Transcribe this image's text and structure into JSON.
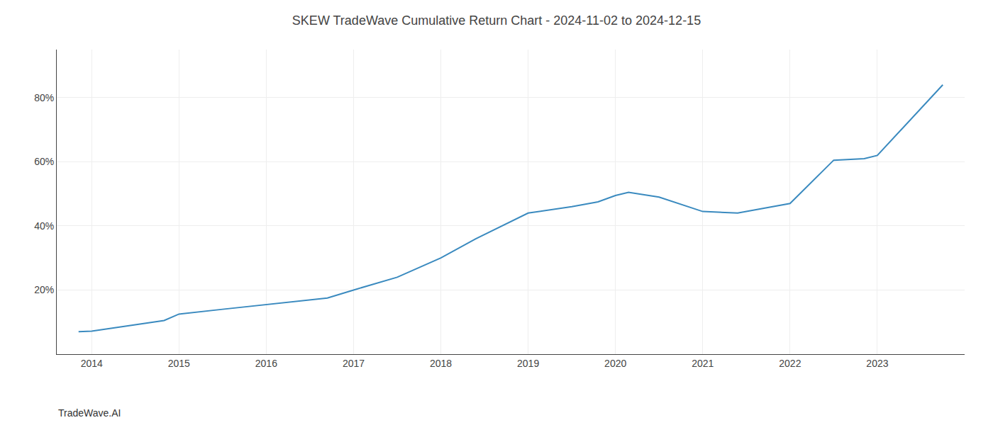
{
  "chart_data": {
    "type": "line",
    "title": "SKEW TradeWave Cumulative Return Chart - 2024-11-02 to 2024-12-15",
    "annotations": [
      {
        "text": "TradeWave.AI"
      }
    ],
    "x": [
      2013.85,
      2014.0,
      2014.83,
      2015.0,
      2015.5,
      2016.0,
      2016.7,
      2017.0,
      2017.5,
      2018.0,
      2018.4,
      2019.0,
      2019.5,
      2019.8,
      2020.0,
      2020.15,
      2020.5,
      2021.0,
      2021.4,
      2022.0,
      2022.5,
      2022.85,
      2023.0,
      2023.75
    ],
    "values": [
      7.0,
      7.2,
      10.5,
      12.5,
      14.0,
      15.5,
      17.5,
      20.0,
      24.0,
      30.0,
      36.0,
      44.0,
      46.0,
      47.5,
      49.5,
      50.5,
      49.0,
      44.5,
      44.0,
      47.0,
      60.5,
      61.0,
      62.0,
      84.0
    ],
    "color": "#3a8abf",
    "xlim": [
      2013.6,
      2024.0
    ],
    "xticks": [
      2014,
      2015,
      2016,
      2017,
      2018,
      2019,
      2020,
      2021,
      2022,
      2023
    ],
    "ylim": [
      0,
      95
    ],
    "yticks": [
      {
        "value": 20,
        "label": "20%"
      },
      {
        "value": 40,
        "label": "40%"
      },
      {
        "value": 60,
        "label": "60%"
      },
      {
        "value": 80,
        "label": "80%"
      }
    ],
    "grid": true
  }
}
